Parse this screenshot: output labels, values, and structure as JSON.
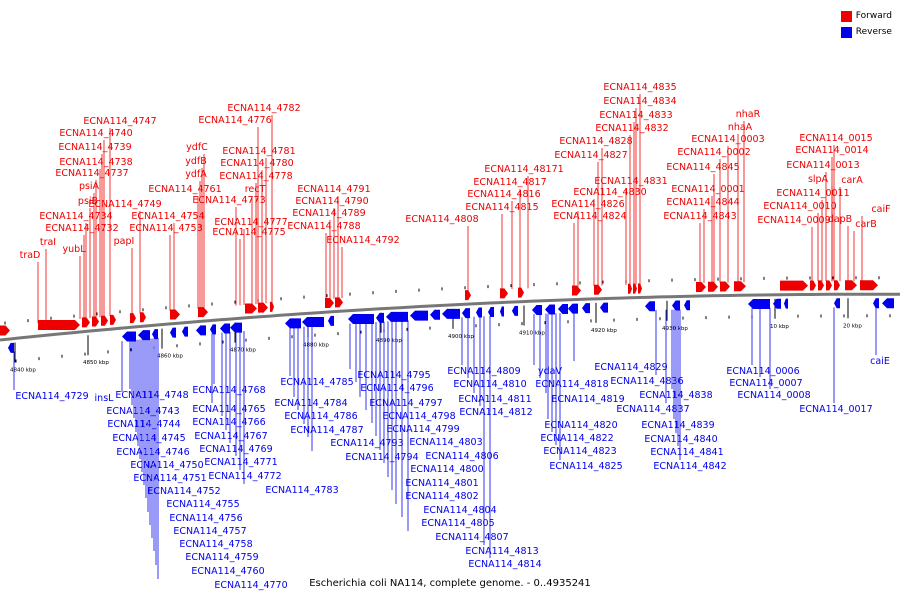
{
  "legend": {
    "forward_label": "Forward",
    "reverse_label": "Reverse",
    "forward_color": "#ee0000",
    "reverse_color": "#0000ee"
  },
  "caption": "Escherichia coli NA114, complete genome. - 0..4935241",
  "ticks": [
    "4840 kbp",
    "4850 kbp",
    "4860 kbp",
    "4870 kbp",
    "4880 kbp",
    "4890 kbp",
    "4900 kbp",
    "4910 kbp",
    "4920 kbp",
    "4930 kbp",
    "10 kbp",
    "20 kbp"
  ],
  "forward_labels": [
    "traD",
    "traI",
    "yubL",
    "ECNA114_4732",
    "psiB",
    "ECNA114_4734",
    "psiA",
    "ECNA114_4737",
    "ECNA114_4738",
    "ECNA114_4739",
    "ECNA114_4740",
    "ECNA114_4747",
    "papI",
    "ECNA114_4749",
    "ECNA114_4753",
    "ECNA114_4754",
    "ECNA114_4761",
    "ydfA",
    "ydfB",
    "ydfC",
    "ECNA114_4775",
    "ECNA114_4777",
    "ECNA114_4773",
    "recT",
    "ECNA114_4778",
    "ECNA114_4780",
    "ECNA114_4781",
    "ECNA114_4776",
    "ECNA114_4782",
    "ECNA114_4788",
    "ECNA114_4789",
    "ECNA114_4790",
    "ECNA114_4791",
    "ECNA114_4792",
    "ECNA114_4808",
    "ECNA114_4815",
    "ECNA114_4816",
    "ECNA114_4817",
    "ECNA114_48171",
    "ECNA114_4824",
    "ECNA114_4826",
    "ECNA114_4830",
    "ECNA114_4827",
    "ECNA114_4828",
    "ECNA114_4831",
    "ECNA114_4832",
    "ECNA114_4833",
    "ECNA114_4834",
    "ECNA114_4835",
    "ECNA114_4843",
    "ECNA114_4844",
    "ECNA114_0001",
    "ECNA114_4845",
    "ECNA114_0002",
    "ECNA114_0003",
    "nhaA",
    "nhaR",
    "ECNA114_0009",
    "ECNA114_0010",
    "ECNA114_0011",
    "ECNA114_0013",
    "ECNA114_0014",
    "ECNA114_0015",
    "slpA",
    "carA",
    "dapB",
    "carB",
    "caiF"
  ],
  "reverse_labels": [
    "ECNA114_4729",
    "insL",
    "ECNA114_4748",
    "ECNA114_4743",
    "ECNA114_4744",
    "ECNA114_4745",
    "ECNA114_4746",
    "ECNA114_4750",
    "ECNA114_4751",
    "ECNA114_4752",
    "ECNA114_4755",
    "ECNA114_4756",
    "ECNA114_4757",
    "ECNA114_4758",
    "ECNA114_4759",
    "ECNA114_4760",
    "ECNA114_4770",
    "ECNA114_4768",
    "ECNA114_4765",
    "ECNA114_4766",
    "ECNA114_4767",
    "ECNA114_4769",
    "ECNA114_4771",
    "ECNA114_4772",
    "ECNA114_4783",
    "ECNA114_4785",
    "ECNA114_4784",
    "ECNA114_4786",
    "ECNA114_4787",
    "ECNA114_4793",
    "ECNA114_4794",
    "ECNA114_4795",
    "ECNA114_4796",
    "ECNA114_4797",
    "ECNA114_4798",
    "ECNA114_4799",
    "ECNA114_4803",
    "ECNA114_4806",
    "ECNA114_4800",
    "ECNA114_4801",
    "ECNA114_4802",
    "ECNA114_4804",
    "ECNA114_4805",
    "ECNA114_4807",
    "ECNA114_4809",
    "ECNA114_4810",
    "ECNA114_4811",
    "ECNA114_4812",
    "ECNA114_4813",
    "ECNA114_4814",
    "ydaV",
    "ECNA114_4818",
    "ECNA114_4819",
    "ECNA114_4820",
    "ECNA114_4822",
    "ECNA114_4823",
    "ECNA114_4825",
    "ECNA114_4829",
    "ECNA114_4836",
    "ECNA114_4837",
    "ECNA114_4838",
    "ECNA114_4839",
    "ECNA114_4840",
    "ECNA114_4841",
    "ECNA114_4842",
    "ECNA114_0006",
    "ECNA114_0007",
    "ECNA114_0008",
    "ECNA114_0017",
    "caiE"
  ]
}
